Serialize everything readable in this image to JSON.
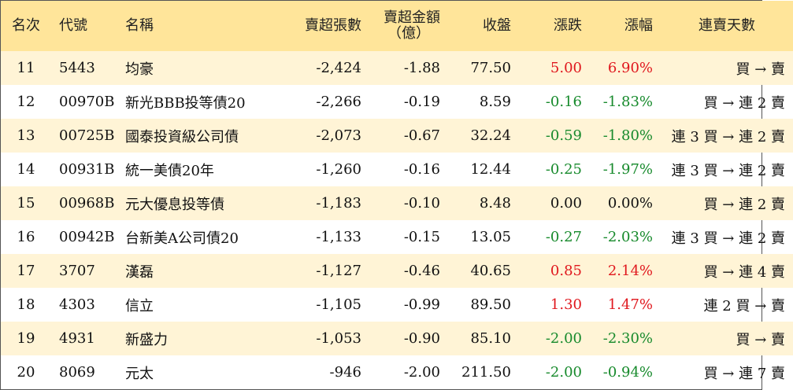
{
  "headers": {
    "rank": "名次",
    "code": "代號",
    "name": "名稱",
    "net_sell_shares": "賣超張數",
    "net_sell_amount_line1": "賣超金額",
    "net_sell_amount_line2": "（億）",
    "close": "收盤",
    "change": "漲跌",
    "change_pct": "漲幅",
    "consecutive_sell_days": "連賣天數"
  },
  "rows": [
    {
      "rank": "11",
      "code": "5443",
      "name": "均豪",
      "shares": "-2,424",
      "amount": "-1.88",
      "close": "77.50",
      "change": "5.00",
      "pct": "6.90%",
      "trend": "up",
      "days": "買 → 賣"
    },
    {
      "rank": "12",
      "code": "00970B",
      "name": "新光BBB投等債20",
      "shares": "-2,266",
      "amount": "-0.19",
      "close": "8.59",
      "change": "-0.16",
      "pct": "-1.83%",
      "trend": "down",
      "days": "買 → 連 2 賣"
    },
    {
      "rank": "13",
      "code": "00725B",
      "name": "國泰投資級公司債",
      "shares": "-2,073",
      "amount": "-0.67",
      "close": "32.24",
      "change": "-0.59",
      "pct": "-1.80%",
      "trend": "down",
      "days": "連 3 買 → 連 2 賣"
    },
    {
      "rank": "14",
      "code": "00931B",
      "name": "統一美債20年",
      "shares": "-1,260",
      "amount": "-0.16",
      "close": "12.44",
      "change": "-0.25",
      "pct": "-1.97%",
      "trend": "down",
      "days": "連 3 買 → 連 2 賣"
    },
    {
      "rank": "15",
      "code": "00968B",
      "name": "元大優息投等債",
      "shares": "-1,183",
      "amount": "-0.10",
      "close": "8.48",
      "change": "0.00",
      "pct": "0.00%",
      "trend": "flat",
      "days": "買 → 連 2 賣"
    },
    {
      "rank": "16",
      "code": "00942B",
      "name": "台新美A公司債20",
      "shares": "-1,133",
      "amount": "-0.15",
      "close": "13.05",
      "change": "-0.27",
      "pct": "-2.03%",
      "trend": "down",
      "days": "連 3 買 → 連 2 賣"
    },
    {
      "rank": "17",
      "code": "3707",
      "name": "漢磊",
      "shares": "-1,127",
      "amount": "-0.46",
      "close": "40.65",
      "change": "0.85",
      "pct": "2.14%",
      "trend": "up",
      "days": "買 → 連 4 賣"
    },
    {
      "rank": "18",
      "code": "4303",
      "name": "信立",
      "shares": "-1,105",
      "amount": "-0.99",
      "close": "89.50",
      "change": "1.30",
      "pct": "1.47%",
      "trend": "up",
      "days": "連 2 買 → 賣"
    },
    {
      "rank": "19",
      "code": "4931",
      "name": "新盛力",
      "shares": "-1,053",
      "amount": "-0.90",
      "close": "85.10",
      "change": "-2.00",
      "pct": "-2.30%",
      "trend": "down",
      "days": "買 → 賣"
    },
    {
      "rank": "20",
      "code": "8069",
      "name": "元太",
      "shares": "-946",
      "amount": "-2.00",
      "close": "211.50",
      "change": "-2.00",
      "pct": "-0.94%",
      "trend": "down",
      "days": "買 → 連 7 賣"
    }
  ],
  "colors": {
    "header_bg": "#ffe59a",
    "odd_row_bg": "#fff4d6",
    "even_row_bg": "#ffffff",
    "up": "#e0181e",
    "down": "#178a2c",
    "flat": "#111111"
  }
}
